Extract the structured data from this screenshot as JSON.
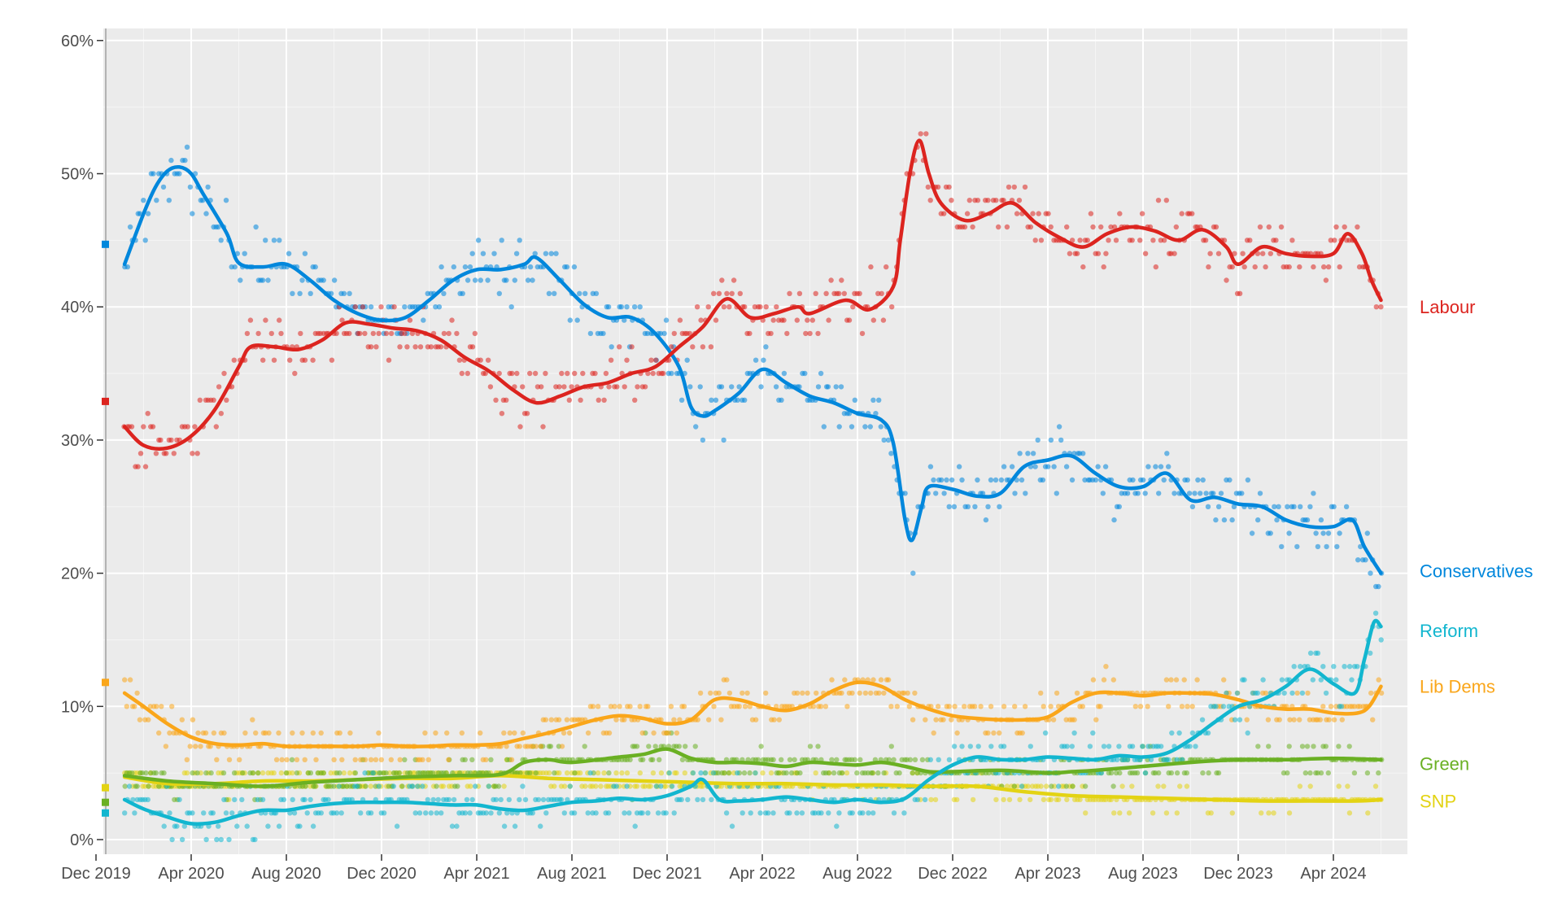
{
  "chart_data": {
    "type": "scatter",
    "title": "",
    "xlabel": "",
    "ylabel": "",
    "ylim": [
      0,
      60
    ],
    "y_ticks": [
      "0%",
      "10%",
      "20%",
      "30%",
      "40%",
      "50%",
      "60%"
    ],
    "x_ticks": [
      "Dec 2019",
      "Apr 2020",
      "Aug 2020",
      "Dec 2020",
      "Apr 2021",
      "Aug 2021",
      "Dec 2021",
      "Apr 2022",
      "Aug 2022",
      "Dec 2022",
      "Apr 2023",
      "Aug 2023",
      "Dec 2023",
      "Apr 2024"
    ],
    "x_range_months": [
      0,
      55
    ],
    "grid": true,
    "legend": "direct labels at right",
    "series": [
      {
        "name": "Labour",
        "color": "#DC241F",
        "election_result": 32.9,
        "spread": 2.5,
        "trend": [
          [
            1.2,
            31
          ],
          [
            2,
            29.6
          ],
          [
            3,
            29.4
          ],
          [
            4,
            30.3
          ],
          [
            5,
            32.3
          ],
          [
            6,
            35.5
          ],
          [
            6.5,
            37
          ],
          [
            7.5,
            37
          ],
          [
            8.5,
            36.8
          ],
          [
            9.5,
            37.5
          ],
          [
            10.5,
            38.8
          ],
          [
            11.5,
            38.7
          ],
          [
            12.5,
            38.4
          ],
          [
            13.5,
            38.2
          ],
          [
            14.5,
            37.5
          ],
          [
            15.5,
            36.2
          ],
          [
            16.5,
            35.2
          ],
          [
            17.5,
            33.8
          ],
          [
            18.5,
            32.8
          ],
          [
            19.5,
            33.3
          ],
          [
            20.5,
            34
          ],
          [
            21.5,
            34.3
          ],
          [
            22.5,
            35
          ],
          [
            23.5,
            35.5
          ],
          [
            24.5,
            37
          ],
          [
            25.5,
            38.5
          ],
          [
            26.5,
            40.6
          ],
          [
            27.5,
            39.2
          ],
          [
            28.5,
            39.5
          ],
          [
            29.5,
            40
          ],
          [
            30,
            39.5
          ],
          [
            31.5,
            40.5
          ],
          [
            32.5,
            39.8
          ],
          [
            33.5,
            41.5
          ],
          [
            33.8,
            45
          ],
          [
            34.2,
            50
          ],
          [
            34.6,
            52.5
          ],
          [
            35,
            50
          ],
          [
            35.5,
            47.8
          ],
          [
            36.5,
            46.5
          ],
          [
            37.5,
            47
          ],
          [
            38.5,
            47.8
          ],
          [
            39.5,
            46.3
          ],
          [
            40.5,
            45.2
          ],
          [
            41.5,
            44.5
          ],
          [
            42.5,
            45.5
          ],
          [
            43.5,
            46
          ],
          [
            44.5,
            45.7
          ],
          [
            45.5,
            45
          ],
          [
            46.5,
            45.8
          ],
          [
            47.5,
            44.5
          ],
          [
            48,
            43.2
          ],
          [
            49,
            44.5
          ],
          [
            50,
            44
          ],
          [
            51,
            43.8
          ],
          [
            52,
            44
          ],
          [
            52.6,
            45.5
          ],
          [
            53.2,
            44
          ],
          [
            53.6,
            42
          ],
          [
            54,
            40.5
          ]
        ],
        "label": "Labour"
      },
      {
        "name": "Conservatives",
        "color": "#0087DC",
        "election_result": 44.7,
        "spread": 2.5,
        "trend": [
          [
            1.2,
            43.2
          ],
          [
            2,
            47
          ],
          [
            2.5,
            49
          ],
          [
            3,
            50.2
          ],
          [
            3.5,
            50.5
          ],
          [
            4,
            50
          ],
          [
            4.5,
            48.5
          ],
          [
            5.5,
            45.5
          ],
          [
            6,
            43.3
          ],
          [
            7,
            43
          ],
          [
            8,
            43.2
          ],
          [
            9,
            42
          ],
          [
            10,
            40.5
          ],
          [
            11,
            39.5
          ],
          [
            12,
            39
          ],
          [
            13,
            39.2
          ],
          [
            14,
            40.5
          ],
          [
            15,
            42
          ],
          [
            16,
            42.8
          ],
          [
            17,
            42.8
          ],
          [
            18,
            43.2
          ],
          [
            18.5,
            43.7
          ],
          [
            19.5,
            42
          ],
          [
            20.5,
            40.2
          ],
          [
            21.5,
            39.2
          ],
          [
            22.5,
            39.2
          ],
          [
            23.5,
            38
          ],
          [
            24.5,
            35.5
          ],
          [
            25,
            32.5
          ],
          [
            25.5,
            31.8
          ],
          [
            26,
            32.2
          ],
          [
            27,
            33.5
          ],
          [
            28,
            35.3
          ],
          [
            29,
            34.3
          ],
          [
            30,
            33.3
          ],
          [
            31,
            32.8
          ],
          [
            32,
            32
          ],
          [
            33,
            31.5
          ],
          [
            33.5,
            29.8
          ],
          [
            34,
            24
          ],
          [
            34.3,
            22.5
          ],
          [
            34.7,
            25
          ],
          [
            35,
            26.5
          ],
          [
            36,
            26.3
          ],
          [
            37,
            25.8
          ],
          [
            38,
            26
          ],
          [
            39,
            28
          ],
          [
            40,
            28.5
          ],
          [
            41,
            28.8
          ],
          [
            42,
            27.5
          ],
          [
            43,
            26.5
          ],
          [
            44,
            26.5
          ],
          [
            45,
            27.5
          ],
          [
            46,
            25.5
          ],
          [
            47,
            25.7
          ],
          [
            48,
            25.2
          ],
          [
            49,
            25
          ],
          [
            50,
            24
          ],
          [
            51,
            23.5
          ],
          [
            52,
            23.5
          ],
          [
            52.8,
            24
          ],
          [
            53.3,
            22
          ],
          [
            54,
            20
          ]
        ],
        "label": "Conservatives"
      },
      {
        "name": "Reform",
        "color": "#12B6CF",
        "election_result": 2.0,
        "spread": 2.0,
        "trend": [
          [
            1.2,
            3
          ],
          [
            2,
            2.3
          ],
          [
            3,
            1.7
          ],
          [
            4,
            1.2
          ],
          [
            5,
            1.3
          ],
          [
            6,
            1.8
          ],
          [
            7,
            2.2
          ],
          [
            8,
            2.2
          ],
          [
            9,
            2.5
          ],
          [
            10,
            2.7
          ],
          [
            11,
            2.8
          ],
          [
            12,
            2.8
          ],
          [
            13,
            2.8
          ],
          [
            14,
            2.7
          ],
          [
            15,
            2.6
          ],
          [
            16,
            2.6
          ],
          [
            17,
            2.3
          ],
          [
            18,
            2.2
          ],
          [
            19,
            2.5
          ],
          [
            20,
            2.8
          ],
          [
            21,
            2.9
          ],
          [
            22,
            3.1
          ],
          [
            23,
            3
          ],
          [
            24,
            3.3
          ],
          [
            25,
            4
          ],
          [
            25.5,
            4.5
          ],
          [
            26.2,
            3
          ],
          [
            27,
            2.9
          ],
          [
            28,
            3
          ],
          [
            29,
            3.2
          ],
          [
            30,
            3
          ],
          [
            31,
            2.8
          ],
          [
            32,
            3
          ],
          [
            33,
            2.8
          ],
          [
            34,
            3.1
          ],
          [
            35,
            4.5
          ],
          [
            36,
            5.6
          ],
          [
            37,
            6.2
          ],
          [
            38,
            6
          ],
          [
            39,
            6
          ],
          [
            40,
            6.2
          ],
          [
            41,
            6.1
          ],
          [
            42,
            6
          ],
          [
            43,
            6.3
          ],
          [
            44,
            6.2
          ],
          [
            45,
            6.5
          ],
          [
            46,
            7.5
          ],
          [
            47,
            8.8
          ],
          [
            48,
            10
          ],
          [
            49,
            10.5
          ],
          [
            50,
            11.5
          ],
          [
            51,
            12.8
          ],
          [
            52,
            11.7
          ],
          [
            52.9,
            11
          ],
          [
            53.3,
            13.5
          ],
          [
            53.7,
            16.3
          ],
          [
            54,
            16
          ]
        ],
        "label": "Reform"
      },
      {
        "name": "Lib Dems",
        "color": "#FAA61A",
        "election_result": 11.8,
        "spread": 1.6,
        "trend": [
          [
            1.2,
            11
          ],
          [
            2,
            10
          ],
          [
            3,
            8.7
          ],
          [
            4,
            7.7
          ],
          [
            5,
            7.2
          ],
          [
            6,
            7.1
          ],
          [
            7,
            7.2
          ],
          [
            8,
            7
          ],
          [
            9,
            7
          ],
          [
            10,
            7
          ],
          [
            11,
            7
          ],
          [
            12,
            7.1
          ],
          [
            13,
            7
          ],
          [
            14,
            7
          ],
          [
            15,
            7.1
          ],
          [
            16,
            7.1
          ],
          [
            17,
            7.2
          ],
          [
            18,
            7.6
          ],
          [
            19,
            8
          ],
          [
            20,
            8.5
          ],
          [
            21,
            9
          ],
          [
            22,
            9.3
          ],
          [
            23,
            9.1
          ],
          [
            24,
            8.7
          ],
          [
            25,
            9
          ],
          [
            26,
            10.5
          ],
          [
            27,
            10.5
          ],
          [
            28,
            10
          ],
          [
            29,
            9.7
          ],
          [
            30,
            10.2
          ],
          [
            31,
            11.2
          ],
          [
            32,
            11.8
          ],
          [
            33,
            11.5
          ],
          [
            34,
            10.5
          ],
          [
            35,
            9.8
          ],
          [
            36,
            9.3
          ],
          [
            37,
            9.1
          ],
          [
            38,
            9
          ],
          [
            39,
            9
          ],
          [
            40,
            9.2
          ],
          [
            41,
            10.3
          ],
          [
            42,
            11
          ],
          [
            43,
            11
          ],
          [
            44,
            10.8
          ],
          [
            45,
            11
          ],
          [
            46,
            11
          ],
          [
            47,
            10.9
          ],
          [
            48,
            10.5
          ],
          [
            49,
            10
          ],
          [
            50,
            9.8
          ],
          [
            51,
            9.8
          ],
          [
            52,
            9.5
          ],
          [
            53,
            9.5
          ],
          [
            53.5,
            10
          ],
          [
            54,
            11.5
          ]
        ],
        "label": "Lib Dems"
      },
      {
        "name": "Green",
        "color": "#6AB023",
        "election_result": 2.8,
        "spread": 1.3,
        "trend": [
          [
            1.2,
            4.8
          ],
          [
            3,
            4.4
          ],
          [
            5,
            4.2
          ],
          [
            7,
            4
          ],
          [
            9,
            4.3
          ],
          [
            11,
            4.5
          ],
          [
            13,
            4.7
          ],
          [
            15,
            4.8
          ],
          [
            17,
            4.9
          ],
          [
            18,
            5.8
          ],
          [
            19,
            6
          ],
          [
            20,
            5.8
          ],
          [
            22,
            6.2
          ],
          [
            23,
            6.4
          ],
          [
            24,
            6.8
          ],
          [
            25,
            6.1
          ],
          [
            26,
            5.8
          ],
          [
            27,
            5.8
          ],
          [
            28,
            5.7
          ],
          [
            29,
            5.5
          ],
          [
            30,
            5.8
          ],
          [
            31,
            5.7
          ],
          [
            32,
            5.6
          ],
          [
            33,
            5.8
          ],
          [
            34,
            5.5
          ],
          [
            35,
            5.1
          ],
          [
            36,
            5.1
          ],
          [
            38,
            5.2
          ],
          [
            40,
            5
          ],
          [
            41,
            5.1
          ],
          [
            42,
            5.2
          ],
          [
            44,
            5.5
          ],
          [
            46,
            5.8
          ],
          [
            48,
            6
          ],
          [
            50,
            6
          ],
          [
            52,
            6.1
          ],
          [
            54,
            6
          ]
        ],
        "label": "Green"
      },
      {
        "name": "SNP",
        "color": "#E3D313",
        "election_result": 3.9,
        "spread": 0.9,
        "trend": [
          [
            1.2,
            4.7
          ],
          [
            3,
            4.2
          ],
          [
            5,
            4.2
          ],
          [
            7,
            4.4
          ],
          [
            9,
            4.4
          ],
          [
            11,
            4.5
          ],
          [
            13,
            4.6
          ],
          [
            15,
            4.6
          ],
          [
            17,
            4.8
          ],
          [
            19,
            4.6
          ],
          [
            21,
            4.5
          ],
          [
            23,
            4.4
          ],
          [
            25,
            4.3
          ],
          [
            27,
            4.2
          ],
          [
            29,
            4.2
          ],
          [
            31,
            4.1
          ],
          [
            33,
            4.1
          ],
          [
            35,
            4
          ],
          [
            37,
            4
          ],
          [
            39,
            3.6
          ],
          [
            41,
            3.3
          ],
          [
            43,
            3.2
          ],
          [
            45,
            3.1
          ],
          [
            47,
            3
          ],
          [
            49,
            2.9
          ],
          [
            51,
            2.9
          ],
          [
            53,
            2.9
          ],
          [
            54,
            3
          ]
        ],
        "label": "SNP"
      }
    ]
  }
}
